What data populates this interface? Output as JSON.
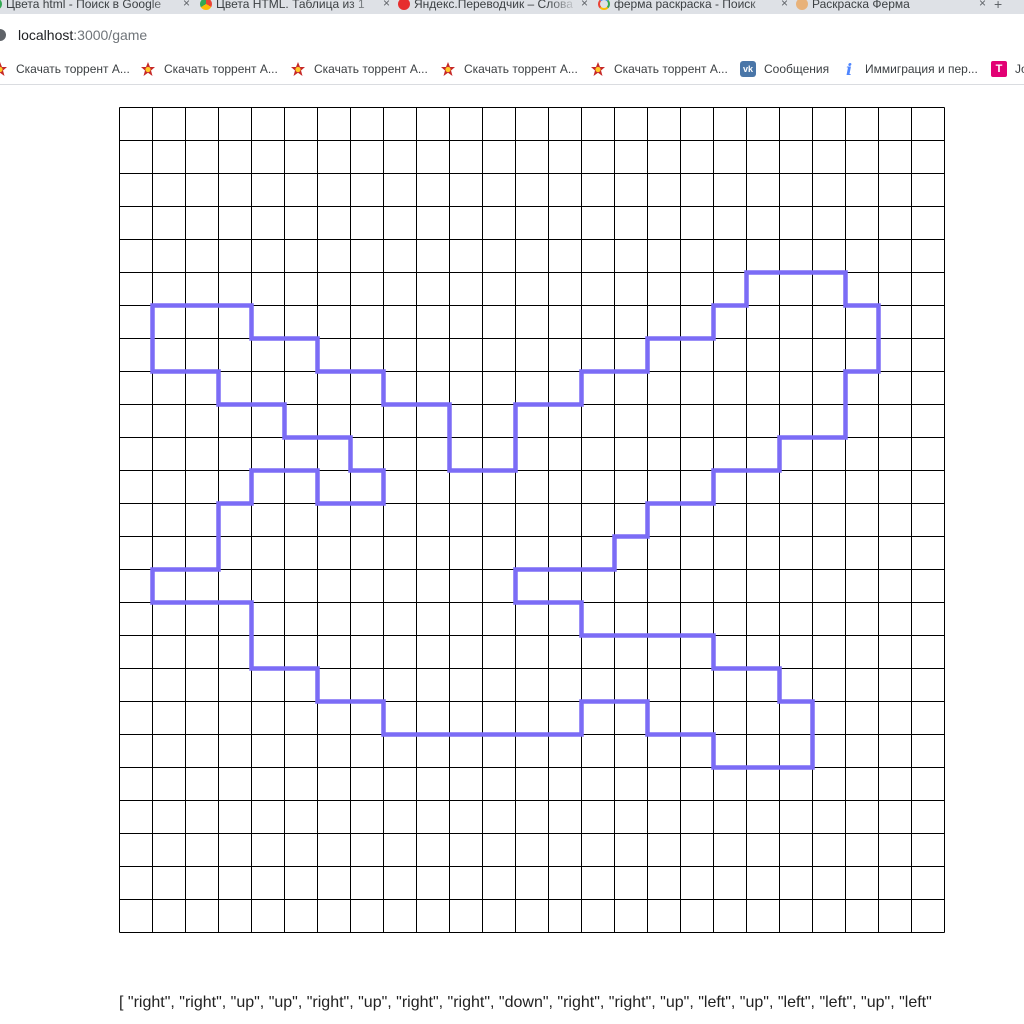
{
  "browser": {
    "tabs": [
      {
        "title": "Цвета html - Поиск в Google",
        "favicon": "google-icon"
      },
      {
        "title": "Цвета HTML. Таблица из 1",
        "favicon": "chrome-icon"
      },
      {
        "title": "Яндекс.Переводчик – Слова",
        "favicon": "yandex-translate-icon"
      },
      {
        "title": "ферма раскраска - Поиск",
        "favicon": "google-icon"
      },
      {
        "title": "Раскраска Ферма",
        "favicon": "paint-palette-icon"
      }
    ],
    "address": {
      "host": "localhost",
      "path": ":3000/game"
    },
    "bookmarks": [
      {
        "label": "Скачать торрент А...",
        "icon": "torrent-star-icon"
      },
      {
        "label": "Скачать торрент А...",
        "icon": "torrent-star-icon"
      },
      {
        "label": "Скачать торрент А...",
        "icon": "torrent-star-icon"
      },
      {
        "label": "Скачать торрент А...",
        "icon": "torrent-star-icon"
      },
      {
        "label": "Скачать торрент А...",
        "icon": "torrent-star-icon"
      },
      {
        "label": "Сообщения",
        "icon": "vk-icon"
      },
      {
        "label": "Иммиграция и пер...",
        "icon": "info-icon"
      },
      {
        "label": "Jo",
        "icon": "t-mobile-icon"
      }
    ]
  },
  "game": {
    "grid_size": 25,
    "line_color": "#000000",
    "path_color": "#7b6cf6",
    "paths": [
      [
        [
          1,
          6
        ],
        [
          4,
          6
        ],
        [
          4,
          7
        ],
        [
          6,
          7
        ],
        [
          6,
          8
        ],
        [
          8,
          8
        ],
        [
          8,
          9
        ],
        [
          10,
          9
        ],
        [
          10,
          11
        ],
        [
          12,
          11
        ],
        [
          12,
          9
        ],
        [
          14,
          9
        ],
        [
          14,
          8
        ],
        [
          16,
          8
        ],
        [
          16,
          7
        ],
        [
          18,
          7
        ],
        [
          18,
          6
        ],
        [
          19,
          6
        ],
        [
          19,
          5
        ],
        [
          22,
          5
        ],
        [
          22,
          6
        ],
        [
          23,
          6
        ],
        [
          23,
          8
        ],
        [
          22,
          8
        ],
        [
          22,
          10
        ],
        [
          20,
          10
        ],
        [
          20,
          11
        ],
        [
          18,
          11
        ],
        [
          18,
          12
        ],
        [
          16,
          12
        ],
        [
          16,
          13
        ],
        [
          15,
          13
        ],
        [
          15,
          14
        ],
        [
          12,
          14
        ],
        [
          12,
          15
        ],
        [
          14,
          15
        ],
        [
          14,
          16
        ],
        [
          18,
          16
        ],
        [
          18,
          17
        ],
        [
          20,
          17
        ],
        [
          20,
          18
        ],
        [
          21,
          18
        ],
        [
          21,
          20
        ],
        [
          18,
          20
        ],
        [
          18,
          19
        ],
        [
          16,
          19
        ],
        [
          16,
          18
        ],
        [
          14,
          18
        ],
        [
          14,
          19
        ],
        [
          8,
          19
        ],
        [
          8,
          18
        ],
        [
          6,
          18
        ],
        [
          6,
          17
        ],
        [
          4,
          17
        ],
        [
          4,
          15
        ],
        [
          1,
          15
        ],
        [
          1,
          14
        ],
        [
          3,
          14
        ],
        [
          3,
          12
        ],
        [
          4,
          12
        ],
        [
          4,
          11
        ],
        [
          6,
          11
        ],
        [
          6,
          12
        ],
        [
          8,
          12
        ],
        [
          8,
          11
        ],
        [
          7,
          11
        ],
        [
          7,
          10
        ],
        [
          5,
          10
        ],
        [
          5,
          9
        ],
        [
          3,
          9
        ],
        [
          3,
          8
        ],
        [
          1,
          8
        ],
        [
          1,
          6
        ]
      ]
    ]
  },
  "commands_text": "[ \"right\", \"right\", \"up\", \"up\", \"right\", \"up\", \"right\", \"right\", \"down\", \"right\", \"right\", \"up\", \"left\", \"up\", \"left\", \"left\", \"up\", \"left\""
}
